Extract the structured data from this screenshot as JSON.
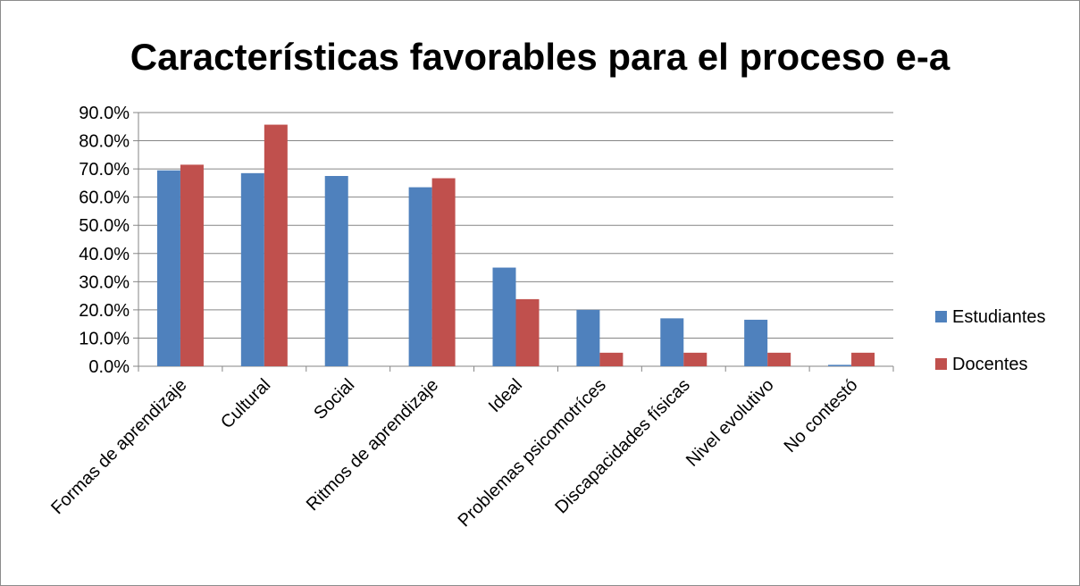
{
  "chart_data": {
    "type": "bar",
    "title": "Características favorables para el proceso e-a",
    "categories": [
      "Formas de aprendizaje",
      "Cultural",
      "Social",
      "Ritmos de aprendizaje",
      "Ideal",
      "Problemas psicomotríces",
      "Discapacidades físicas",
      "Nivel evolutivo",
      "No contestó"
    ],
    "series": [
      {
        "name": "Estudiantes",
        "color": "#4f81bd",
        "values": [
          69.5,
          68.5,
          67.5,
          63.5,
          35.0,
          20.0,
          17.0,
          16.5,
          0.5
        ]
      },
      {
        "name": "Docentes",
        "color": "#c0504d",
        "values": [
          71.5,
          85.7,
          0.0,
          66.7,
          23.8,
          4.8,
          4.8,
          4.8,
          4.8
        ]
      }
    ],
    "ylim": [
      0,
      90
    ],
    "ytick_labels": [
      "0.0%",
      "10.0%",
      "20.0%",
      "30.0%",
      "40.0%",
      "50.0%",
      "60.0%",
      "70.0%",
      "80.0%",
      "90.0%"
    ],
    "grid": true,
    "legend_position": "right"
  }
}
